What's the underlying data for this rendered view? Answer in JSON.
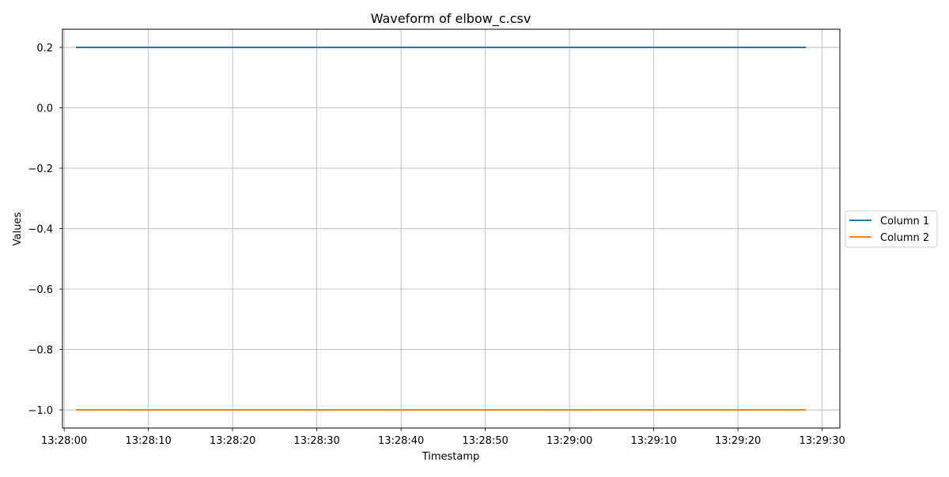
{
  "chart_data": {
    "type": "line",
    "title": "Waveform of elbow_c.csv",
    "xlabel": "Timestamp",
    "ylabel": "Values",
    "x_tick_labels": [
      "13:28:00",
      "13:28:10",
      "13:28:20",
      "13:28:30",
      "13:28:40",
      "13:28:50",
      "13:29:00",
      "13:29:10",
      "13:29:20",
      "13:29:30"
    ],
    "y_tick_labels": [
      "0.2",
      "0.0",
      "−0.2",
      "−0.4",
      "−0.6",
      "−0.8",
      "−1.0"
    ],
    "y_ticks": [
      0.2,
      0.0,
      -0.2,
      -0.4,
      -0.6,
      -0.8,
      -1.0
    ],
    "xlim": [
      "13:27:59.8",
      "13:29:32.1"
    ],
    "ylim": [
      -1.06,
      0.26
    ],
    "grid": true,
    "legend_position": "outside-right",
    "series": [
      {
        "name": "Column 1",
        "color": "#1f77b4",
        "x": [
          "13:28:01.5",
          "13:29:28.0"
        ],
        "y": [
          0.2,
          0.2
        ]
      },
      {
        "name": "Column 2",
        "color": "#ff7f0e",
        "x": [
          "13:28:01.5",
          "13:29:28.0"
        ],
        "y": [
          -1.0,
          -1.0
        ]
      }
    ]
  }
}
